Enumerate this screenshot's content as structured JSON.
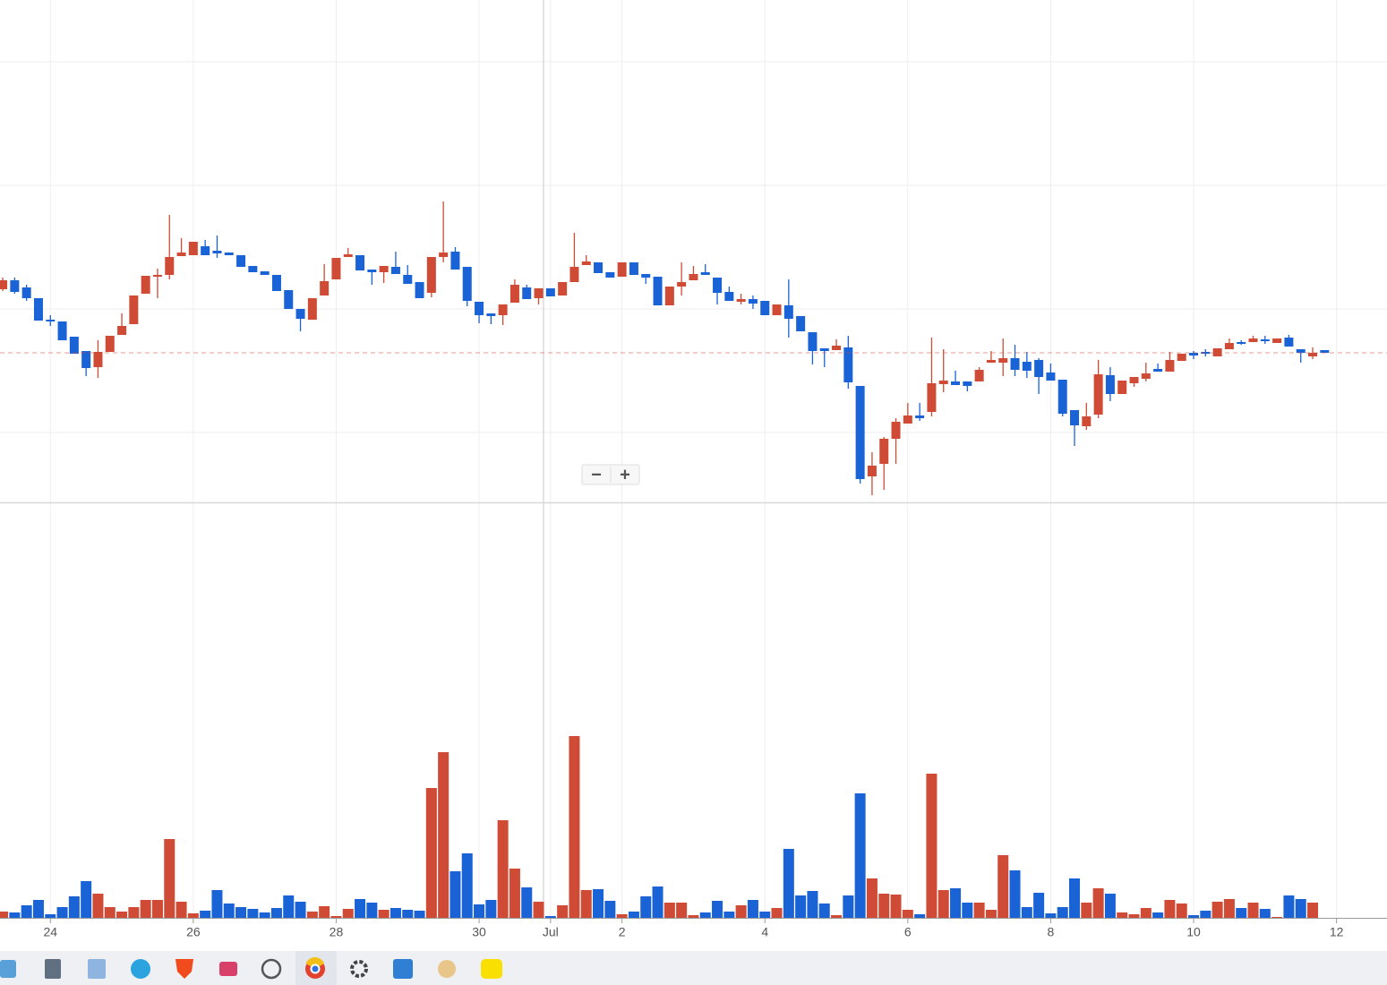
{
  "chart_data": [
    {
      "type": "candlestick",
      "up_color": "#cf4b35",
      "down_color": "#1a63d6",
      "xlim": [
        -0.23,
        116.24
      ],
      "ylim": [
        40,
        600
      ],
      "yticks": [
        117,
        255,
        393,
        531
      ],
      "grid": true,
      "open": [
        277,
        287,
        279,
        267,
        243,
        241,
        224,
        208,
        190,
        207,
        226,
        238,
        272,
        291,
        293,
        314,
        315,
        325,
        320,
        318,
        315,
        303,
        297,
        293,
        276,
        255,
        243,
        270,
        288,
        313,
        315,
        299,
        296,
        302,
        293,
        285,
        273,
        313,
        319,
        302,
        263,
        250,
        248,
        262,
        279,
        267,
        278,
        270,
        285,
        304,
        307,
        296,
        291,
        307,
        294,
        291,
        259,
        280,
        287,
        296,
        290,
        274,
        263,
        266,
        264,
        248,
        259,
        247,
        229,
        211,
        209,
        212,
        169,
        68,
        82,
        110,
        127,
        136,
        140,
        171,
        174,
        174,
        174,
        195,
        195,
        200,
        196,
        198,
        184,
        176,
        142,
        124,
        137,
        181,
        160,
        172,
        177,
        188,
        185,
        197,
        206,
        207,
        202,
        210,
        218,
        218,
        221,
        217,
        223,
        210,
        202,
        209
      ],
      "high": [
        290,
        290,
        282,
        267,
        248,
        241,
        224,
        208,
        220,
        225,
        250,
        270,
        292,
        300,
        360,
        334,
        330,
        332,
        337,
        318,
        315,
        303,
        297,
        293,
        276,
        255,
        267,
        305,
        312,
        323,
        315,
        299,
        303,
        319,
        304,
        285,
        313,
        375,
        324,
        302,
        263,
        250,
        260,
        288,
        282,
        278,
        278,
        285,
        340,
        315,
        307,
        296,
        307,
        307,
        294,
        291,
        280,
        307,
        303,
        305,
        290,
        280,
        272,
        270,
        264,
        260,
        288,
        247,
        229,
        211,
        221,
        225,
        169,
        95,
        112,
        133,
        150,
        150,
        223,
        210,
        186,
        174,
        190,
        208,
        222,
        215,
        207,
        200,
        194,
        176,
        142,
        150,
        198,
        190,
        175,
        179,
        195,
        194,
        207,
        205,
        208,
        210,
        211,
        222,
        220,
        225,
        225,
        222,
        226,
        210,
        212,
        209
      ],
      "low": [
        275,
        272,
        264,
        242,
        236,
        220,
        205,
        180,
        178,
        207,
        226,
        238,
        272,
        267,
        288,
        314,
        315,
        315,
        312,
        315,
        302,
        296,
        293,
        275,
        255,
        230,
        243,
        270,
        288,
        313,
        298,
        282,
        284,
        294,
        283,
        267,
        268,
        307,
        299,
        258,
        239,
        238,
        237,
        262,
        266,
        260,
        269,
        270,
        285,
        304,
        295,
        290,
        291,
        293,
        283,
        259,
        259,
        270,
        287,
        293,
        260,
        264,
        260,
        255,
        248,
        248,
        223,
        230,
        193,
        190,
        209,
        166,
        60,
        47,
        53,
        82,
        127,
        130,
        135,
        162,
        170,
        163,
        174,
        195,
        180,
        180,
        178,
        160,
        175,
        135,
        102,
        120,
        133,
        152,
        160,
        168,
        174,
        185,
        185,
        197,
        199,
        202,
        202,
        210,
        215,
        218,
        216,
        217,
        213,
        195,
        199,
        206
      ],
      "close": [
        287,
        274,
        267,
        242,
        241,
        220,
        205,
        189,
        207,
        225,
        236,
        270,
        292,
        293,
        313,
        318,
        330,
        315,
        317,
        315,
        302,
        296,
        293,
        275,
        255,
        244,
        267,
        286,
        312,
        316,
        298,
        296,
        303,
        294,
        283,
        267,
        313,
        318,
        299,
        264,
        248,
        247,
        260,
        282,
        266,
        278,
        269,
        285,
        302,
        308,
        295,
        290,
        307,
        293,
        290,
        259,
        280,
        285,
        294,
        293,
        273,
        264,
        266,
        261,
        248,
        260,
        244,
        230,
        208,
        208,
        214,
        173,
        65,
        80,
        110,
        129,
        136,
        133,
        172,
        175,
        170,
        169,
        187,
        198,
        200,
        187,
        186,
        179,
        175,
        138,
        125,
        135,
        182,
        160,
        175,
        179,
        183,
        185,
        198,
        205,
        203,
        205,
        211,
        217,
        216,
        222,
        219,
        222,
        213,
        206,
        206,
        206
      ]
    },
    {
      "type": "bar",
      "xlim": [
        -0.23,
        116.24
      ],
      "ylim": [
        0,
        463
      ],
      "xticks": [
        {
          "value": 4,
          "label": "24"
        },
        {
          "value": 16,
          "label": "26"
        },
        {
          "value": 28,
          "label": "28"
        },
        {
          "value": 40,
          "label": "30"
        },
        {
          "value": 46,
          "label": "Jul"
        },
        {
          "value": 52,
          "label": "2"
        },
        {
          "value": 64,
          "label": "4"
        },
        {
          "value": 76,
          "label": "6"
        },
        {
          "value": 88,
          "label": "8"
        },
        {
          "value": 100,
          "label": "10"
        },
        {
          "value": 112,
          "label": "12"
        }
      ],
      "values": [
        7,
        6,
        14,
        20,
        4,
        12,
        24,
        41,
        27,
        12,
        7,
        12,
        20,
        20,
        88,
        18,
        5,
        8,
        31,
        16,
        12,
        10,
        6,
        11,
        25,
        18,
        7,
        13,
        2,
        10,
        21,
        17,
        9,
        11,
        9,
        8,
        145,
        185,
        52,
        72,
        15,
        20,
        109,
        55,
        34,
        18,
        2,
        14,
        203,
        31,
        32,
        19,
        4,
        7,
        24,
        35,
        17,
        17,
        3,
        6,
        19,
        7,
        14,
        20,
        7,
        11,
        77,
        25,
        30,
        16,
        3,
        25,
        139,
        44,
        27,
        26,
        9,
        4,
        161,
        31,
        33,
        17,
        17,
        9,
        70,
        53,
        12,
        28,
        5,
        12,
        44,
        17,
        33,
        27,
        6,
        4,
        11,
        6,
        20,
        16,
        3,
        8,
        18,
        21,
        11,
        17,
        10,
        1,
        25,
        21,
        17,
        0
      ]
    }
  ],
  "controls": {
    "zoom_out": "−",
    "zoom_in": "+"
  }
}
